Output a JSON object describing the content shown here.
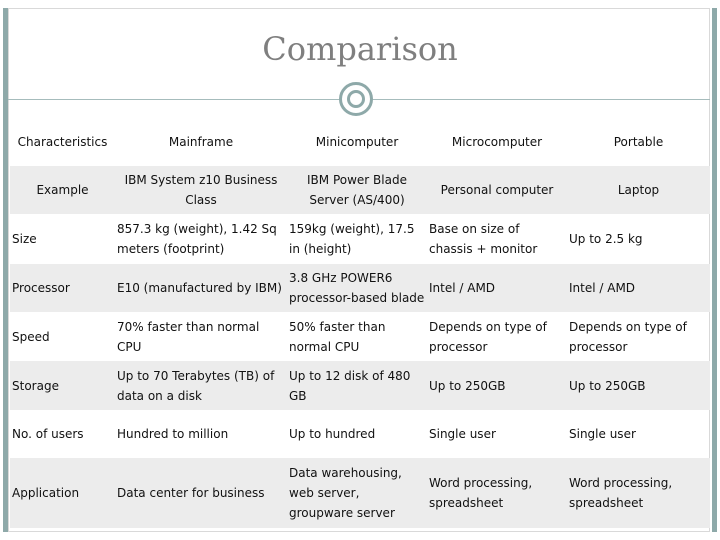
{
  "slide": {
    "title": "Comparison"
  },
  "table": {
    "headers": [
      "Characteristics",
      "Mainframe",
      "Minicomputer",
      "Microcomputer",
      "Portable"
    ],
    "rows": [
      [
        "Example",
        "IBM System z10 Business Class",
        "IBM Power Blade Server (AS/400)",
        "Personal computer",
        "Laptop"
      ],
      [
        "Size",
        "857.3 kg (weight), 1.42 Sq meters (footprint)",
        "159kg (weight), 17.5 in (height)",
        "Base on size of chassis + monitor",
        "Up to 2.5 kg"
      ],
      [
        "Processor",
        "E10 (manufactured by IBM)",
        "3.8 GHz POWER6 processor-based blade",
        "Intel / AMD",
        "Intel / AMD"
      ],
      [
        "Speed",
        "70% faster than normal CPU",
        "50% faster than normal CPU",
        "Depends on type of processor",
        "Depends on type of processor"
      ],
      [
        "Storage",
        "Up to 70 Terabytes (TB) of data on a disk",
        "Up to 12 disk of 480 GB",
        "Up to 250GB",
        "Up to 250GB"
      ],
      [
        "No. of users",
        "Hundred to million",
        "Up to hundred",
        "Single user",
        "Single user"
      ],
      [
        "Application",
        "Data center for business",
        "Data warehousing, web server, groupware server",
        "Word processing, spreadsheet",
        "Word processing, spreadsheet"
      ]
    ]
  },
  "colors": {
    "accent": "#8ea9a9",
    "title": "#7f7f7f",
    "alt_row": "#ececec"
  }
}
